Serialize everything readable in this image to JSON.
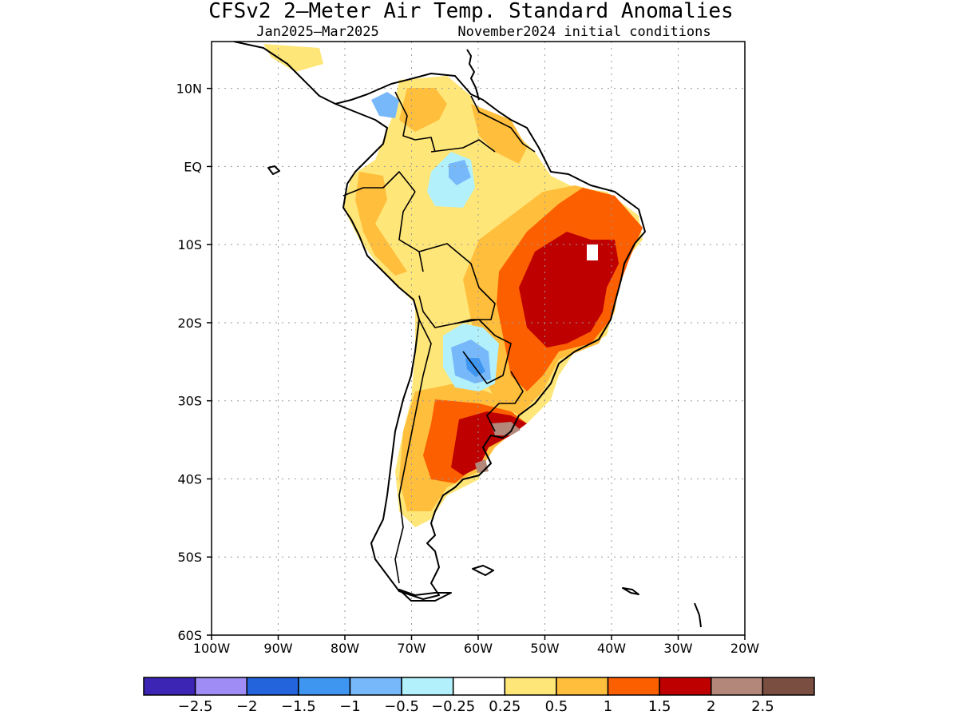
{
  "title": "CFSv2 2–Meter Air Temp. Standard Anomalies",
  "subtitle_left": "Jan2025–Mar2025",
  "subtitle_right": "November2024 initial conditions",
  "map": {
    "lon_range": [
      -100,
      -20
    ],
    "lat_range": [
      -60,
      16
    ],
    "y_tick_labels": [
      "10N",
      "EQ",
      "10S",
      "20S",
      "30S",
      "40S",
      "50S",
      "60S"
    ],
    "x_tick_labels": [
      "100W",
      "90W",
      "80W",
      "70W",
      "60W",
      "50W",
      "40W",
      "30W",
      "20W"
    ],
    "grid": true
  },
  "colorbar": {
    "colors": [
      "#3c24b4",
      "#a08cf5",
      "#2363dc",
      "#3f96f0",
      "#77b8fb",
      "#b2f0fb",
      "#ffffff",
      "#ffe678",
      "#ffbe3c",
      "#fc5f00",
      "#be0000",
      "#b4877b",
      "#7b4e42"
    ],
    "labels": [
      "-2.5",
      "-2",
      "-1.5",
      "-1",
      "-0.5",
      "-0.25",
      "0.25",
      "0.5",
      "1",
      "1.5",
      "2",
      "2.5"
    ]
  },
  "colors": {
    "ocean": "#ffffff",
    "land": "#ffffff",
    "coast": "#000000"
  }
}
